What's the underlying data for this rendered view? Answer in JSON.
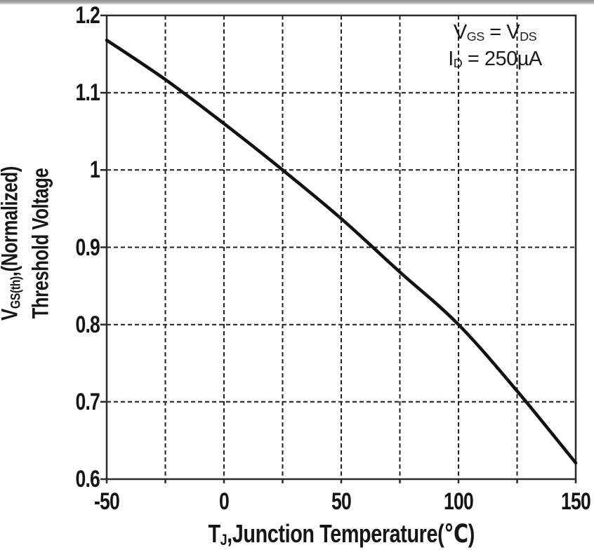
{
  "colors": {
    "text": "#161616",
    "grid": "#1f1f1f",
    "frame": "#2a2a2a",
    "curve": "#111111",
    "page_top_edge": "#9a9a9a"
  },
  "chart_data": {
    "type": "line",
    "title": "",
    "xlabel": "TJ, Junction Temperature (℃)",
    "ylabel": "VGS(th), (Normalized) Threshold Voltage",
    "xlim": [
      -50,
      150
    ],
    "ylim": [
      0.6,
      1.2
    ],
    "x_grid_step": 25,
    "y_grid_step": 0.1,
    "grid_style": "dashed",
    "legend": "none",
    "x_tick_labels": [
      "-50",
      "0",
      "50",
      "100",
      "150"
    ],
    "y_tick_labels": [
      "1.2",
      "1.1",
      "1",
      "0.9",
      "0.8",
      "0.7",
      "0.6"
    ],
    "series": [
      {
        "name": "Normalized VGS(th)",
        "x": [
          -50,
          -25,
          0,
          25,
          50,
          75,
          100,
          125,
          150
        ],
        "values": [
          1.168,
          1.117,
          1.06,
          1.0,
          0.937,
          0.868,
          0.8,
          0.714,
          0.621
        ]
      }
    ],
    "conditions": [
      "VGS = VDS",
      "ID = 250µA"
    ]
  },
  "labels": {
    "y_title": {
      "pre": "V",
      "sub": "GS(th)",
      "post": ",(Normalized)",
      "line2": "Threshold Voltage"
    },
    "x_title": {
      "pre": "T",
      "sub": "J",
      "post": ",Junction Temperature(℃)"
    },
    "annotation": {
      "line1": {
        "a": "V",
        "a_sub": "GS",
        "b": " = V",
        "b_sub": "DS"
      },
      "line2": {
        "a": "I",
        "a_sub": "D",
        "b": " = 250µA"
      }
    }
  }
}
